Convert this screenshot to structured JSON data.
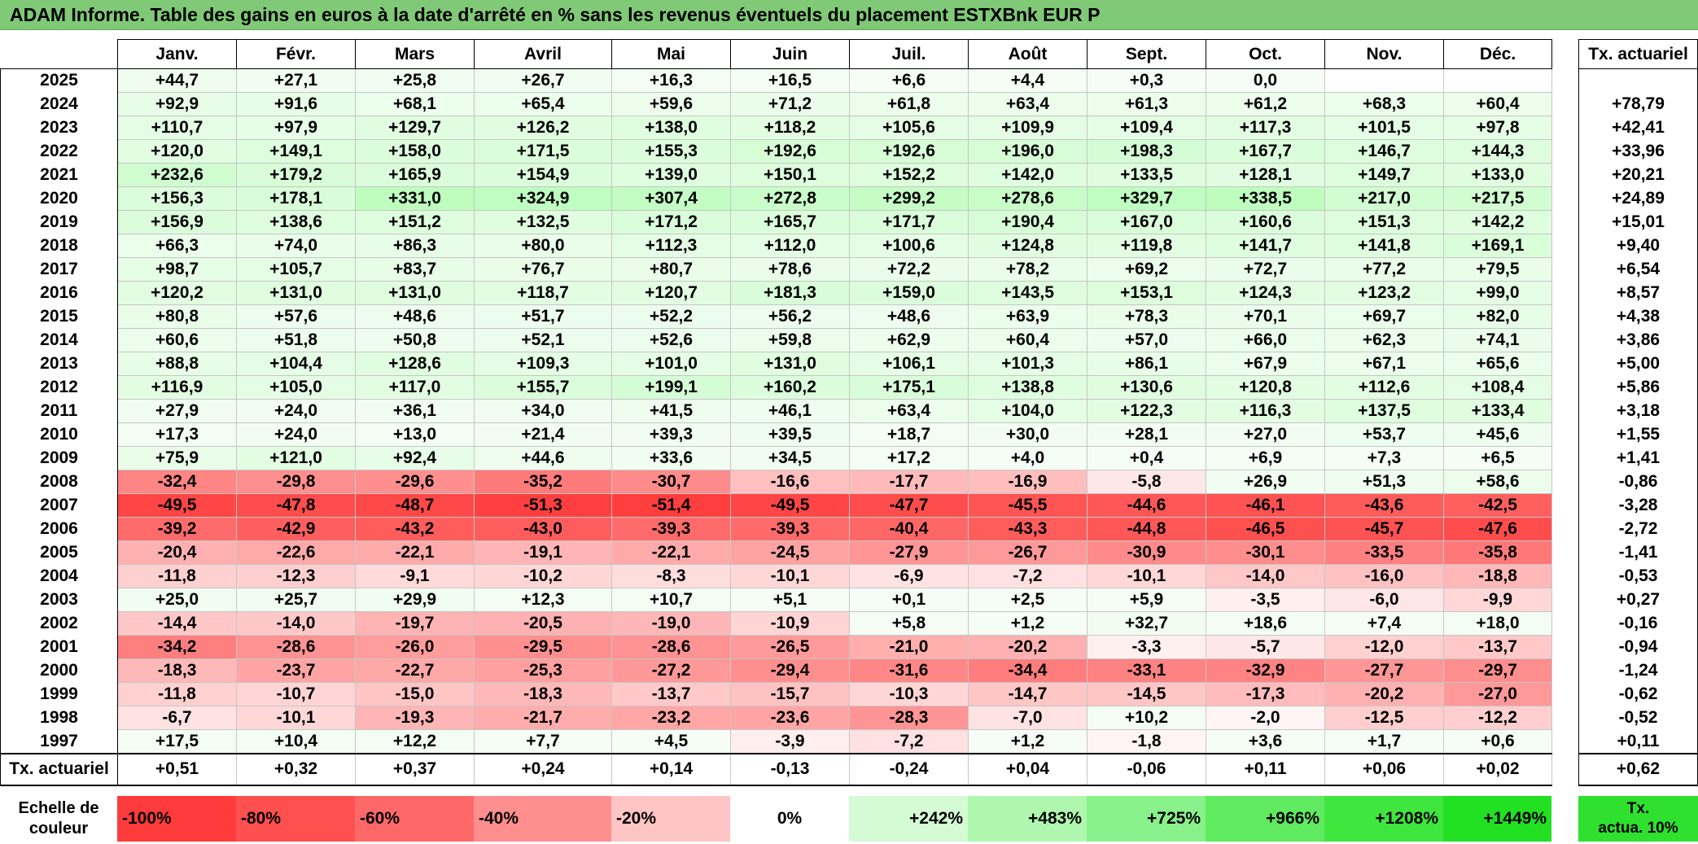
{
  "title": "ADAM Informe. Table des gains en euros à la date d'arrêté en % sans les revenus éventuels du placement ESTXBnk EUR P",
  "months": [
    "Janv.",
    "Févr.",
    "Mars",
    "Avril",
    "Mai",
    "Juin",
    "Juil.",
    "Août",
    "Sept.",
    "Oct.",
    "Nov.",
    "Déc."
  ],
  "tx_header": "Tx. actuariel",
  "rows": [
    {
      "year": "2025",
      "values": [
        "+44,7",
        "+27,1",
        "+25,8",
        "+26,7",
        "+16,3",
        "+16,5",
        "+6,6",
        "+4,4",
        "+0,3",
        "0,0",
        "",
        ""
      ],
      "tx": ""
    },
    {
      "year": "2024",
      "values": [
        "+92,9",
        "+91,6",
        "+68,1",
        "+65,4",
        "+59,6",
        "+71,2",
        "+61,8",
        "+63,4",
        "+61,3",
        "+61,2",
        "+68,3",
        "+60,4"
      ],
      "tx": "+78,79"
    },
    {
      "year": "2023",
      "values": [
        "+110,7",
        "+97,9",
        "+129,7",
        "+126,2",
        "+138,0",
        "+118,2",
        "+105,6",
        "+109,9",
        "+109,4",
        "+117,3",
        "+101,5",
        "+97,8"
      ],
      "tx": "+42,41"
    },
    {
      "year": "2022",
      "values": [
        "+120,0",
        "+149,1",
        "+158,0",
        "+171,5",
        "+155,3",
        "+192,6",
        "+192,6",
        "+196,0",
        "+198,3",
        "+167,7",
        "+146,7",
        "+144,3"
      ],
      "tx": "+33,96"
    },
    {
      "year": "2021",
      "values": [
        "+232,6",
        "+179,2",
        "+165,9",
        "+154,9",
        "+139,0",
        "+150,1",
        "+152,2",
        "+142,0",
        "+133,5",
        "+128,1",
        "+149,7",
        "+133,0"
      ],
      "tx": "+20,21"
    },
    {
      "year": "2020",
      "values": [
        "+156,3",
        "+178,1",
        "+331,0",
        "+324,9",
        "+307,4",
        "+272,8",
        "+299,2",
        "+278,6",
        "+329,7",
        "+338,5",
        "+217,0",
        "+217,5"
      ],
      "tx": "+24,89"
    },
    {
      "year": "2019",
      "values": [
        "+156,9",
        "+138,6",
        "+151,2",
        "+132,5",
        "+171,2",
        "+165,7",
        "+171,7",
        "+190,4",
        "+167,0",
        "+160,6",
        "+151,3",
        "+142,2"
      ],
      "tx": "+15,01"
    },
    {
      "year": "2018",
      "values": [
        "+66,3",
        "+74,0",
        "+86,3",
        "+80,0",
        "+112,3",
        "+112,0",
        "+100,6",
        "+124,8",
        "+119,8",
        "+141,7",
        "+141,8",
        "+169,1"
      ],
      "tx": "+9,40"
    },
    {
      "year": "2017",
      "values": [
        "+98,7",
        "+105,7",
        "+83,7",
        "+76,7",
        "+80,7",
        "+78,6",
        "+72,2",
        "+78,2",
        "+69,2",
        "+72,7",
        "+77,2",
        "+79,5"
      ],
      "tx": "+6,54"
    },
    {
      "year": "2016",
      "values": [
        "+120,2",
        "+131,0",
        "+131,0",
        "+118,7",
        "+120,7",
        "+181,3",
        "+159,0",
        "+143,5",
        "+153,1",
        "+124,3",
        "+123,2",
        "+99,0"
      ],
      "tx": "+8,57"
    },
    {
      "year": "2015",
      "values": [
        "+80,8",
        "+57,6",
        "+48,6",
        "+51,7",
        "+52,2",
        "+56,2",
        "+48,6",
        "+63,9",
        "+78,3",
        "+70,1",
        "+69,7",
        "+82,0"
      ],
      "tx": "+4,38"
    },
    {
      "year": "2014",
      "values": [
        "+60,6",
        "+51,8",
        "+50,8",
        "+52,1",
        "+52,6",
        "+59,8",
        "+62,9",
        "+60,4",
        "+57,0",
        "+66,0",
        "+62,3",
        "+74,1"
      ],
      "tx": "+3,86"
    },
    {
      "year": "2013",
      "values": [
        "+88,8",
        "+104,4",
        "+128,6",
        "+109,3",
        "+101,0",
        "+131,0",
        "+106,1",
        "+101,3",
        "+86,1",
        "+67,9",
        "+67,1",
        "+65,6"
      ],
      "tx": "+5,00"
    },
    {
      "year": "2012",
      "values": [
        "+116,9",
        "+105,0",
        "+117,0",
        "+155,7",
        "+199,1",
        "+160,2",
        "+175,1",
        "+138,8",
        "+130,6",
        "+120,8",
        "+112,6",
        "+108,4"
      ],
      "tx": "+5,86"
    },
    {
      "year": "2011",
      "values": [
        "+27,9",
        "+24,0",
        "+36,1",
        "+34,0",
        "+41,5",
        "+46,1",
        "+63,4",
        "+104,0",
        "+122,3",
        "+116,3",
        "+137,5",
        "+133,4"
      ],
      "tx": "+3,18"
    },
    {
      "year": "2010",
      "values": [
        "+17,3",
        "+24,0",
        "+13,0",
        "+21,4",
        "+39,3",
        "+39,5",
        "+18,7",
        "+30,0",
        "+28,1",
        "+27,0",
        "+53,7",
        "+45,6"
      ],
      "tx": "+1,55"
    },
    {
      "year": "2009",
      "values": [
        "+75,9",
        "+121,0",
        "+92,4",
        "+44,6",
        "+33,6",
        "+34,5",
        "+17,2",
        "+4,0",
        "+0,4",
        "+6,9",
        "+7,3",
        "+6,5"
      ],
      "tx": "+1,41"
    },
    {
      "year": "2008",
      "values": [
        "-32,4",
        "-29,8",
        "-29,6",
        "-35,2",
        "-30,7",
        "-16,6",
        "-17,7",
        "-16,9",
        "-5,8",
        "+26,9",
        "+51,3",
        "+58,6"
      ],
      "tx": "-0,86"
    },
    {
      "year": "2007",
      "values": [
        "-49,5",
        "-47,8",
        "-48,7",
        "-51,3",
        "-51,4",
        "-49,5",
        "-47,7",
        "-45,5",
        "-44,6",
        "-46,1",
        "-43,6",
        "-42,5"
      ],
      "tx": "-3,28"
    },
    {
      "year": "2006",
      "values": [
        "-39,2",
        "-42,9",
        "-43,2",
        "-43,0",
        "-39,3",
        "-39,3",
        "-40,4",
        "-43,3",
        "-44,8",
        "-46,5",
        "-45,7",
        "-47,6"
      ],
      "tx": "-2,72"
    },
    {
      "year": "2005",
      "values": [
        "-20,4",
        "-22,6",
        "-22,1",
        "-19,1",
        "-22,1",
        "-24,5",
        "-27,9",
        "-26,7",
        "-30,9",
        "-30,1",
        "-33,5",
        "-35,8"
      ],
      "tx": "-1,41"
    },
    {
      "year": "2004",
      "values": [
        "-11,8",
        "-12,3",
        "-9,1",
        "-10,2",
        "-8,3",
        "-10,1",
        "-6,9",
        "-7,2",
        "-10,1",
        "-14,0",
        "-16,0",
        "-18,8"
      ],
      "tx": "-0,53"
    },
    {
      "year": "2003",
      "values": [
        "+25,0",
        "+25,7",
        "+29,9",
        "+12,3",
        "+10,7",
        "+5,1",
        "+0,1",
        "+2,5",
        "+5,9",
        "-3,5",
        "-6,0",
        "-9,9"
      ],
      "tx": "+0,27"
    },
    {
      "year": "2002",
      "values": [
        "-14,4",
        "-14,0",
        "-19,7",
        "-20,5",
        "-19,0",
        "-10,9",
        "+5,8",
        "+1,2",
        "+32,7",
        "+18,6",
        "+7,4",
        "+18,0"
      ],
      "tx": "-0,16"
    },
    {
      "year": "2001",
      "values": [
        "-34,2",
        "-28,6",
        "-26,0",
        "-29,5",
        "-28,6",
        "-26,5",
        "-21,0",
        "-20,2",
        "-3,3",
        "-5,7",
        "-12,0",
        "-13,7"
      ],
      "tx": "-0,94"
    },
    {
      "year": "2000",
      "values": [
        "-18,3",
        "-23,7",
        "-22,7",
        "-25,3",
        "-27,2",
        "-29,4",
        "-31,6",
        "-34,4",
        "-33,1",
        "-32,9",
        "-27,7",
        "-29,7"
      ],
      "tx": "-1,24"
    },
    {
      "year": "1999",
      "values": [
        "-11,8",
        "-10,7",
        "-15,0",
        "-18,3",
        "-13,7",
        "-15,7",
        "-10,3",
        "-14,7",
        "-14,5",
        "-17,3",
        "-20,2",
        "-27,0"
      ],
      "tx": "-0,62"
    },
    {
      "year": "1998",
      "values": [
        "-6,7",
        "-10,1",
        "-19,3",
        "-21,7",
        "-23,2",
        "-23,6",
        "-28,3",
        "-7,0",
        "+10,2",
        "-2,0",
        "-12,5",
        "-12,2"
      ],
      "tx": "-0,52"
    },
    {
      "year": "1997",
      "values": [
        "+17,5",
        "+10,4",
        "+12,2",
        "+7,7",
        "+4,5",
        "-3,9",
        "-7,2",
        "+1,2",
        "-1,8",
        "+3,6",
        "+1,7",
        "+0,6"
      ],
      "tx": "+0,11"
    }
  ],
  "summary": {
    "label": "Tx. actuariel",
    "values": [
      "+0,51",
      "+0,32",
      "+0,37",
      "+0,24",
      "+0,14",
      "-0,13",
      "-0,24",
      "+0,04",
      "-0,06",
      "+0,11",
      "+0,06",
      "+0,02"
    ],
    "tx": "+0,62"
  },
  "scale": {
    "label_line1": "Echelle de",
    "label_line2": "couleur",
    "items": [
      {
        "label": "-100%",
        "color": "#ff3b3b"
      },
      {
        "label": "-80%",
        "color": "#ff4f4f"
      },
      {
        "label": "-60%",
        "color": "#ff6868"
      },
      {
        "label": "-40%",
        "color": "#ff8e8e"
      },
      {
        "label": "-20%",
        "color": "#ffc4c4"
      },
      {
        "label": "0%",
        "color": "#ffffff"
      },
      {
        "label": "+242%",
        "color": "#d5fbd5"
      },
      {
        "label": "+483%",
        "color": "#aff7af"
      },
      {
        "label": "+725%",
        "color": "#89f189"
      },
      {
        "label": "+966%",
        "color": "#5fea5f"
      },
      {
        "label": "+1208%",
        "color": "#3ee63e"
      },
      {
        "label": "+1449%",
        "color": "#22e022"
      }
    ],
    "tx_line1": "Tx.",
    "tx_line2": "actua. 10%",
    "tx_color": "#2fe02f"
  },
  "colors": {
    "title_bg": "#80c977",
    "neg_max": "#ff3b3b",
    "pos_light": "#eafdea",
    "pos_mid": "#c8f8c8"
  }
}
